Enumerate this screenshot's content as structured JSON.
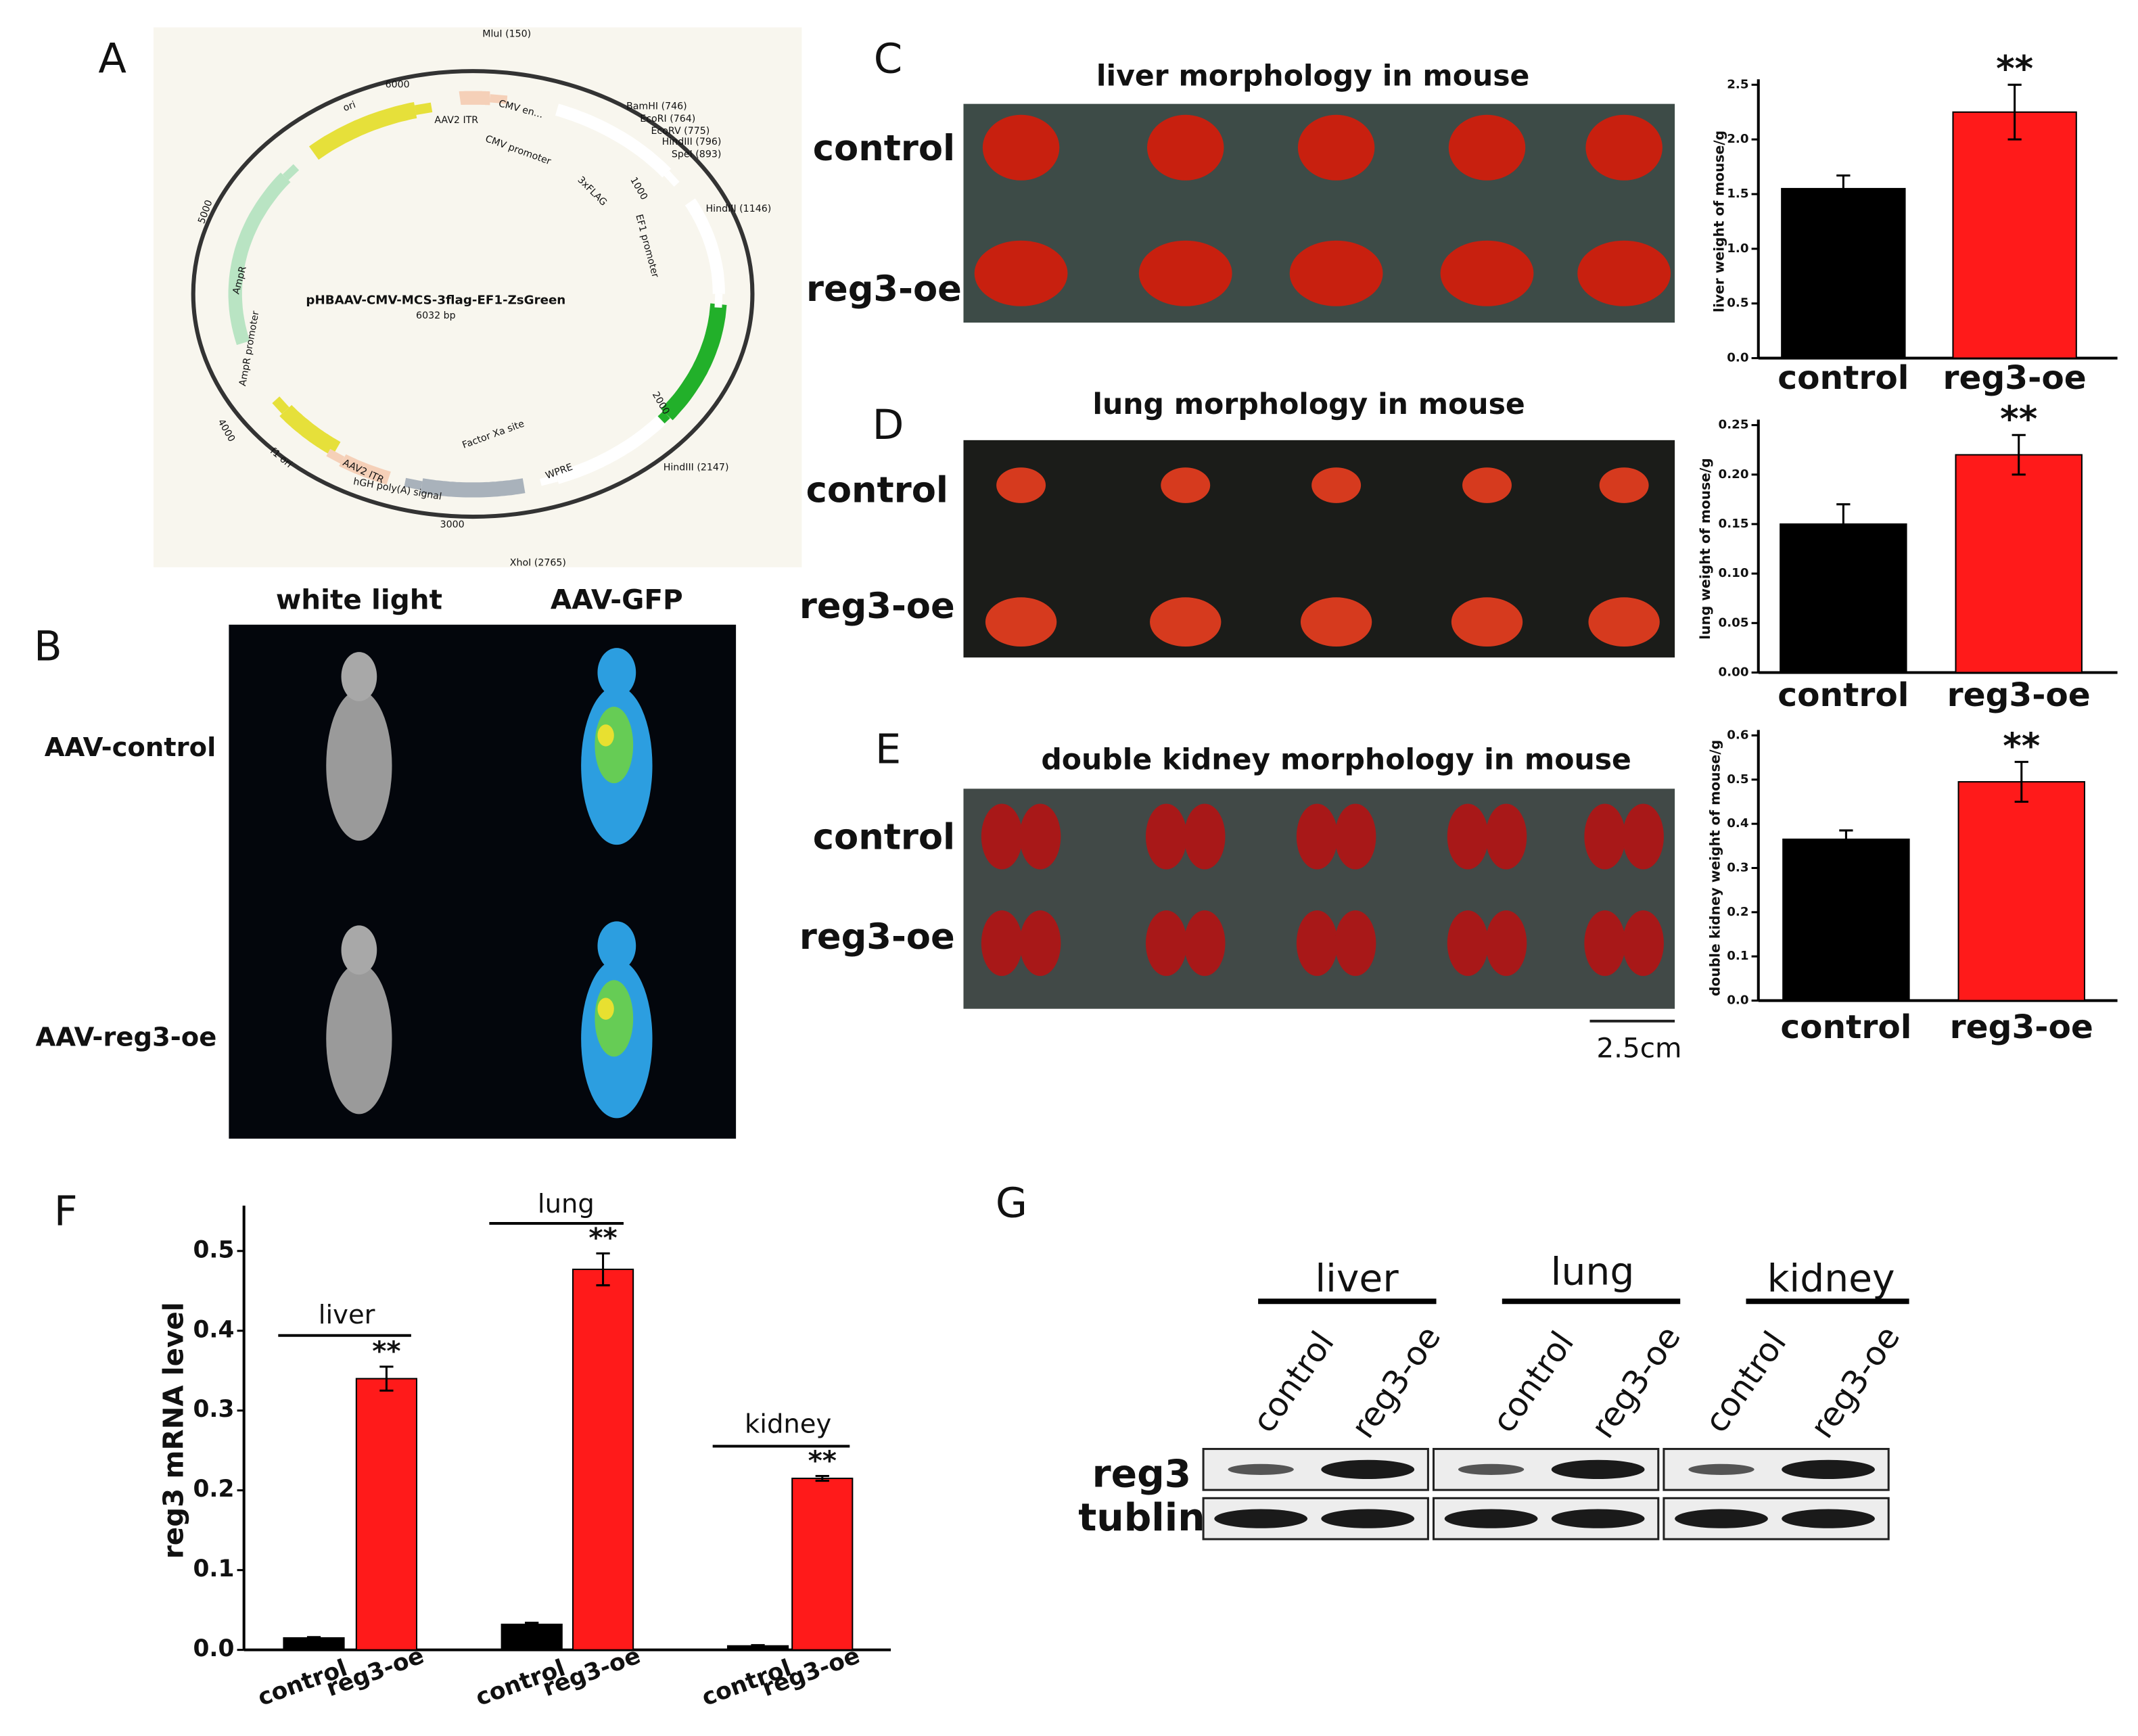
{
  "panel_labels": [
    "A",
    "B",
    "C",
    "D",
    "E",
    "F",
    "G"
  ],
  "plasmid": {
    "labels": [
      "MluI (150)",
      "6000",
      "AAV2 ITR",
      "CMV en...",
      "CMV promoter",
      "BamHI (746)",
      "EcoRI (764)",
      "EcoRV (775)",
      "HindIII (796)",
      "SpeI (893)",
      "3xFLAG",
      "1000",
      "EF1 promoter",
      "HindIII (1146)",
      "ori",
      "5000",
      "AmpR",
      "AmpR promoter",
      "pHBAAV-CMV-MCS-3flag-EF1-ZsGreen",
      "6032 bp",
      "2000",
      "HindIII (2147)",
      "Factor Xa site",
      "WPRE",
      "AAV2 ITR",
      "hGH poly(A) signal",
      "3000",
      "XhoI (2765)",
      "f1 ori",
      "4000"
    ]
  },
  "imaging": {
    "columns": [
      "white light",
      "AAV-GFP"
    ],
    "rows": [
      "AAV-control",
      "AAV-reg3-oe"
    ]
  },
  "morphology": [
    {
      "title": "liver morphology in mouse",
      "rows": [
        "control",
        "reg3-oe"
      ]
    },
    {
      "title": "lung morphology in mouse",
      "rows": [
        "control",
        "reg3-oe"
      ]
    },
    {
      "title": "double kidney morphology in mouse",
      "rows": [
        "control",
        "reg3-oe"
      ]
    }
  ],
  "scale_bar": "2.5cm",
  "chart_data": [
    {
      "type": "bar",
      "y_label": "liver weight of mouse/g",
      "categories": [
        "control",
        "reg3-oe"
      ],
      "values": [
        1.55,
        2.25
      ],
      "errors": [
        0.12,
        0.25
      ],
      "value_annotations": [
        null,
        "**"
      ],
      "colors": [
        "#000000",
        "#ff1a1a"
      ],
      "ylim": [
        0,
        2.5
      ],
      "yticks": [
        {
          "value": 0,
          "label": "0.0"
        },
        0.5,
        {
          "value": 1,
          "label": "1.0"
        },
        1.5,
        {
          "value": 2,
          "label": "2.0"
        },
        2.5
      ]
    },
    {
      "type": "bar",
      "y_label": "lung weight of mouse/g",
      "categories": [
        "control",
        "reg3-oe"
      ],
      "values": [
        0.15,
        0.22
      ],
      "errors": [
        0.02,
        0.02
      ],
      "value_annotations": [
        null,
        "**"
      ],
      "colors": [
        "#000000",
        "#ff1a1a"
      ],
      "ylim": [
        0,
        0.25
      ],
      "yticks": [
        {
          "value": 0,
          "label": "0.00"
        },
        0.05,
        {
          "value": 0.1,
          "label": "0.10"
        },
        0.15,
        {
          "value": 0.2,
          "label": "0.20"
        },
        0.25
      ]
    },
    {
      "type": "bar",
      "y_label": "double kidney weight of mouse/g",
      "categories": [
        "control",
        "reg3-oe"
      ],
      "values": [
        0.365,
        0.495
      ],
      "errors": [
        0.02,
        0.045
      ],
      "value_annotations": [
        null,
        "**"
      ],
      "colors": [
        "#000000",
        "#ff1a1a"
      ],
      "ylim": [
        0,
        0.6
      ],
      "yticks": [
        {
          "value": 0,
          "label": "0.0"
        },
        0.1,
        0.2,
        0.3,
        0.4,
        0.5,
        0.6
      ]
    },
    {
      "type": "bar",
      "y_label": "reg3 mRNA level",
      "groups": [
        "liver",
        "lung",
        "kidney"
      ],
      "categories": [
        "control",
        "reg3-oe",
        "control",
        "reg3-oe",
        "control",
        "reg3-oe"
      ],
      "values": [
        0.015,
        0.34,
        0.032,
        0.477,
        0.005,
        0.215
      ],
      "errors": [
        0.001,
        0.015,
        0.002,
        0.02,
        0.001,
        0.003
      ],
      "value_annotations": [
        null,
        "**",
        null,
        "**",
        null,
        "**"
      ],
      "colors": [
        "#000000",
        "#ff1a1a",
        "#000000",
        "#ff1a1a",
        "#000000",
        "#ff1a1a"
      ],
      "ylim": [
        0,
        0.55
      ],
      "yticks": [
        {
          "value": 0,
          "label": "0.0"
        },
        0.1,
        0.2,
        0.3,
        0.4,
        0.5
      ]
    }
  ],
  "western": {
    "tissues": [
      "liver",
      "lung",
      "kidney"
    ],
    "lanes": [
      "control",
      "reg3-oe",
      "control",
      "reg3-oe",
      "control",
      "reg3-oe"
    ],
    "rows": [
      "reg3",
      "tublin"
    ]
  }
}
